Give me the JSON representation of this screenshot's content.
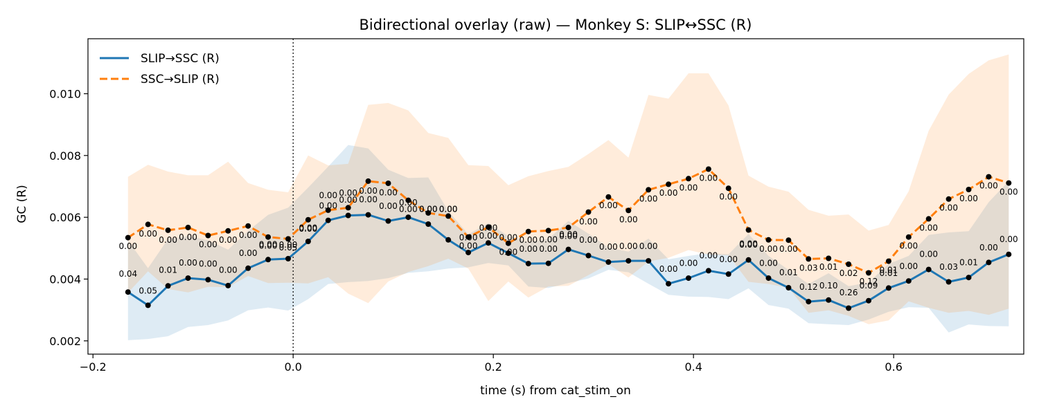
{
  "chart_data": {
    "type": "line",
    "title": "Bidirectional overlay (raw) — Monkey S: SLIP↔SSC (R)",
    "xlabel": "time (s) from cat_stim_on",
    "ylabel": "GC (R)",
    "xlim": [
      -0.205,
      0.73
    ],
    "ylim": [
      0.00157,
      0.01178
    ],
    "xticks": [
      -0.2,
      0.0,
      0.2,
      0.4,
      0.6
    ],
    "xtick_labels": [
      "−0.2",
      "0.0",
      "0.2",
      "0.4",
      "0.6"
    ],
    "yticks": [
      0.002,
      0.004,
      0.006,
      0.008,
      0.01
    ],
    "ytick_labels": [
      "0.002",
      "0.004",
      "0.006",
      "0.008",
      "0.010"
    ],
    "vline_x": 0.0,
    "grid": false,
    "legend_position": "upper left",
    "x": [
      -0.165,
      -0.145,
      -0.125,
      -0.105,
      -0.085,
      -0.065,
      -0.045,
      -0.025,
      -0.005,
      0.015,
      0.035,
      0.055,
      0.075,
      0.095,
      0.115,
      0.135,
      0.155,
      0.175,
      0.195,
      0.215,
      0.235,
      0.255,
      0.275,
      0.295,
      0.315,
      0.335,
      0.355,
      0.375,
      0.395,
      0.415,
      0.435,
      0.455,
      0.475,
      0.495,
      0.515,
      0.535,
      0.555,
      0.575,
      0.595,
      0.615,
      0.635,
      0.655,
      0.675,
      0.695,
      0.715
    ],
    "series": [
      {
        "name": "SLIP→SSC (R)",
        "color": "#1f77b4",
        "style": "solid",
        "values": [
          0.00358,
          0.00315,
          0.00378,
          0.00403,
          0.00398,
          0.00379,
          0.00435,
          0.00463,
          0.00466,
          0.00522,
          0.0059,
          0.00606,
          0.00608,
          0.00588,
          0.006,
          0.00578,
          0.00527,
          0.00486,
          0.00517,
          0.00484,
          0.0045,
          0.00451,
          0.00496,
          0.00476,
          0.00455,
          0.00459,
          0.00459,
          0.00385,
          0.00403,
          0.00427,
          0.00416,
          0.00462,
          0.00403,
          0.00372,
          0.00327,
          0.00332,
          0.00306,
          0.0033,
          0.00371,
          0.00394,
          0.00431,
          0.00391,
          0.00405,
          0.00454,
          0.0048
        ],
        "band_lower": [
          0.00202,
          0.00206,
          0.00215,
          0.00245,
          0.00251,
          0.00266,
          0.00299,
          0.00308,
          0.00298,
          0.00335,
          0.00384,
          0.0039,
          0.00394,
          0.00403,
          0.0042,
          0.00425,
          0.00434,
          0.00438,
          0.00452,
          0.00444,
          0.00376,
          0.00371,
          0.00387,
          0.00402,
          0.0043,
          0.00422,
          0.00385,
          0.00349,
          0.00343,
          0.00342,
          0.00335,
          0.0037,
          0.00316,
          0.00304,
          0.00257,
          0.00254,
          0.00251,
          0.00269,
          0.00294,
          0.00309,
          0.00307,
          0.00227,
          0.00253,
          0.00248,
          0.00247
        ],
        "band_upper": [
          0.00525,
          0.00435,
          0.0053,
          0.00539,
          0.00526,
          0.00495,
          0.00556,
          0.00608,
          0.00631,
          0.00696,
          0.00764,
          0.00834,
          0.00823,
          0.00754,
          0.00727,
          0.00729,
          0.0062,
          0.00545,
          0.00581,
          0.00539,
          0.0052,
          0.0053,
          0.00588,
          0.00547,
          0.00502,
          0.00489,
          0.00531,
          0.00464,
          0.00475,
          0.00484,
          0.0048,
          0.00546,
          0.00475,
          0.0043,
          0.00384,
          0.00419,
          0.00377,
          0.00389,
          0.00449,
          0.00475,
          0.00543,
          0.00551,
          0.00555,
          0.00649,
          0.00717
        ]
      },
      {
        "name": "SSC→SLIP (R)",
        "color": "#ff7f0e",
        "style": "dashed",
        "values": [
          0.00534,
          0.00577,
          0.00558,
          0.00567,
          0.00541,
          0.00556,
          0.00572,
          0.00536,
          0.0053,
          0.00592,
          0.00623,
          0.00631,
          0.00717,
          0.0071,
          0.00655,
          0.00614,
          0.00604,
          0.00536,
          0.00568,
          0.00516,
          0.00554,
          0.00557,
          0.00567,
          0.00617,
          0.00666,
          0.00622,
          0.00689,
          0.00707,
          0.00725,
          0.00756,
          0.00694,
          0.00559,
          0.00527,
          0.00526,
          0.00465,
          0.00467,
          0.00448,
          0.0042,
          0.00458,
          0.00536,
          0.00595,
          0.00659,
          0.0069,
          0.00731,
          0.00711
        ],
        "band_lower": [
          0.00356,
          0.00425,
          0.00368,
          0.00357,
          0.00375,
          0.00374,
          0.0041,
          0.00387,
          0.00388,
          0.00386,
          0.00406,
          0.00353,
          0.00322,
          0.00392,
          0.00423,
          0.00442,
          0.00466,
          0.00434,
          0.00329,
          0.00392,
          0.0034,
          0.00376,
          0.00378,
          0.00413,
          0.00448,
          0.00405,
          0.00457,
          0.00469,
          0.00494,
          0.00479,
          0.00477,
          0.00391,
          0.00384,
          0.00372,
          0.00291,
          0.00299,
          0.00281,
          0.00254,
          0.00266,
          0.00328,
          0.00307,
          0.00291,
          0.00297,
          0.00284,
          0.00304
        ],
        "band_upper": [
          0.00731,
          0.0077,
          0.00748,
          0.00736,
          0.00736,
          0.0078,
          0.00711,
          0.00689,
          0.00681,
          0.008,
          0.00768,
          0.00773,
          0.00964,
          0.0097,
          0.00946,
          0.00873,
          0.00857,
          0.00769,
          0.00766,
          0.00704,
          0.00733,
          0.0075,
          0.00763,
          0.00805,
          0.0085,
          0.00793,
          0.00996,
          0.00984,
          0.01066,
          0.01066,
          0.00962,
          0.00735,
          0.00699,
          0.00683,
          0.00624,
          0.00605,
          0.00609,
          0.00557,
          0.00575,
          0.00684,
          0.0088,
          0.00997,
          0.01064,
          0.01108,
          0.01127
        ]
      }
    ],
    "annotations": [
      {
        "x": -0.165,
        "y": 0.00408,
        "text": "0.04"
      },
      {
        "x": -0.145,
        "y": 0.00353,
        "text": "0.05"
      },
      {
        "x": -0.125,
        "y": 0.0042,
        "text": "0.01"
      },
      {
        "x": -0.105,
        "y": 0.00444,
        "text": "0.00"
      },
      {
        "x": -0.085,
        "y": 0.0044,
        "text": "0.00"
      },
      {
        "x": -0.065,
        "y": 0.0042,
        "text": "0.00"
      },
      {
        "x": -0.045,
        "y": 0.00475,
        "text": "0.00"
      },
      {
        "x": -0.025,
        "y": 0.00503,
        "text": "0.00"
      },
      {
        "x": -0.005,
        "y": 0.00502,
        "text": "0.00"
      },
      {
        "x": 0.015,
        "y": 0.00557,
        "text": "0.00"
      },
      {
        "x": 0.035,
        "y": 0.00628,
        "text": "0.00"
      },
      {
        "x": 0.055,
        "y": 0.00647,
        "text": "0.00"
      },
      {
        "x": 0.075,
        "y": 0.00648,
        "text": "0.00"
      },
      {
        "x": 0.095,
        "y": 0.00627,
        "text": "0.00"
      },
      {
        "x": 0.115,
        "y": 0.00638,
        "text": "0.00"
      },
      {
        "x": 0.135,
        "y": 0.00617,
        "text": "0.00"
      },
      {
        "x": 0.155,
        "y": 0.00617,
        "text": "0.00"
      },
      {
        "x": 0.175,
        "y": 0.00525,
        "text": "0.00"
      },
      {
        "x": 0.195,
        "y": 0.00557,
        "text": "0.00"
      },
      {
        "x": 0.215,
        "y": 0.00525,
        "text": "0.00"
      },
      {
        "x": 0.235,
        "y": 0.00488,
        "text": "0.00"
      },
      {
        "x": 0.255,
        "y": 0.00488,
        "text": "0.00"
      },
      {
        "x": 0.275,
        "y": 0.00535,
        "text": "0.00"
      },
      {
        "x": 0.295,
        "y": 0.00517,
        "text": "0.00"
      },
      {
        "x": 0.315,
        "y": 0.00495,
        "text": "0.00"
      },
      {
        "x": 0.335,
        "y": 0.00497,
        "text": "0.00"
      },
      {
        "x": 0.355,
        "y": 0.00497,
        "text": "0.00"
      },
      {
        "x": 0.375,
        "y": 0.00424,
        "text": "0.00"
      },
      {
        "x": 0.395,
        "y": 0.00442,
        "text": "0.00"
      },
      {
        "x": 0.415,
        "y": 0.00467,
        "text": "0.00"
      },
      {
        "x": 0.435,
        "y": 0.00455,
        "text": "0.00"
      },
      {
        "x": 0.455,
        "y": 0.00502,
        "text": "0.00"
      },
      {
        "x": 0.475,
        "y": 0.00442,
        "text": "0.00"
      },
      {
        "x": 0.495,
        "y": 0.00412,
        "text": "0.01"
      },
      {
        "x": 0.515,
        "y": 0.00365,
        "text": "0.12"
      },
      {
        "x": 0.535,
        "y": 0.0037,
        "text": "0.10"
      },
      {
        "x": 0.555,
        "y": 0.00347,
        "text": "0.26"
      },
      {
        "x": 0.575,
        "y": 0.0037,
        "text": "0.09"
      },
      {
        "x": 0.595,
        "y": 0.0041,
        "text": "0.01"
      },
      {
        "x": 0.615,
        "y": 0.00432,
        "text": "0.00"
      },
      {
        "x": 0.635,
        "y": 0.00472,
        "text": "0.00"
      },
      {
        "x": 0.655,
        "y": 0.0043,
        "text": "0.03"
      },
      {
        "x": 0.675,
        "y": 0.00445,
        "text": "0.01"
      },
      {
        "x": 0.695,
        "y": 0.00493,
        "text": "0.00"
      },
      {
        "x": 0.715,
        "y": 0.0052,
        "text": "0.00"
      },
      {
        "x": -0.165,
        "y": 0.00497,
        "text": "0.00"
      },
      {
        "x": -0.145,
        "y": 0.00538,
        "text": "0.00"
      },
      {
        "x": -0.125,
        "y": 0.00518,
        "text": "0.00"
      },
      {
        "x": -0.105,
        "y": 0.00527,
        "text": "0.00"
      },
      {
        "x": -0.085,
        "y": 0.00503,
        "text": "0.00"
      },
      {
        "x": -0.065,
        "y": 0.00518,
        "text": "0.00"
      },
      {
        "x": -0.045,
        "y": 0.00533,
        "text": "0.00"
      },
      {
        "x": -0.025,
        "y": 0.00498,
        "text": "0.00"
      },
      {
        "x": -0.005,
        "y": 0.00493,
        "text": "0.05"
      },
      {
        "x": 0.015,
        "y": 0.00553,
        "text": "0.00"
      },
      {
        "x": 0.035,
        "y": 0.00662,
        "text": "0.00"
      },
      {
        "x": 0.055,
        "y": 0.0067,
        "text": "0.00"
      },
      {
        "x": 0.075,
        "y": 0.00677,
        "text": "0.00"
      },
      {
        "x": 0.095,
        "y": 0.00671,
        "text": "0.00"
      },
      {
        "x": 0.115,
        "y": 0.00617,
        "text": "0.00"
      },
      {
        "x": 0.135,
        "y": 0.00617,
        "text": "0.00"
      },
      {
        "x": 0.155,
        "y": 0.00617,
        "text": "0.00"
      },
      {
        "x": 0.175,
        "y": 0.00498,
        "text": "0.00"
      },
      {
        "x": 0.195,
        "y": 0.00531,
        "text": "0.00"
      },
      {
        "x": 0.215,
        "y": 0.00478,
        "text": "0.00"
      },
      {
        "x": 0.235,
        "y": 0.00517,
        "text": "0.00"
      },
      {
        "x": 0.255,
        "y": 0.00519,
        "text": "0.00"
      },
      {
        "x": 0.275,
        "y": 0.0053,
        "text": "0.00"
      },
      {
        "x": 0.295,
        "y": 0.00577,
        "text": "0.00"
      },
      {
        "x": 0.315,
        "y": 0.00629,
        "text": "0.00"
      },
      {
        "x": 0.335,
        "y": 0.00583,
        "text": "0.00"
      },
      {
        "x": 0.355,
        "y": 0.00651,
        "text": "0.00"
      },
      {
        "x": 0.375,
        "y": 0.0067,
        "text": "0.00"
      },
      {
        "x": 0.395,
        "y": 0.00687,
        "text": "0.00"
      },
      {
        "x": 0.415,
        "y": 0.00718,
        "text": "0.00"
      },
      {
        "x": 0.435,
        "y": 0.00657,
        "text": "0.00"
      },
      {
        "x": 0.455,
        "y": 0.00505,
        "text": "0.00"
      },
      {
        "x": 0.475,
        "y": 0.00488,
        "text": "0.00"
      },
      {
        "x": 0.495,
        "y": 0.00488,
        "text": "0.00"
      },
      {
        "x": 0.515,
        "y": 0.00427,
        "text": "0.03"
      },
      {
        "x": 0.535,
        "y": 0.0043,
        "text": "0.01"
      },
      {
        "x": 0.555,
        "y": 0.0041,
        "text": "0.02"
      },
      {
        "x": 0.575,
        "y": 0.00383,
        "text": "0.12"
      },
      {
        "x": 0.595,
        "y": 0.0042,
        "text": "0.01"
      },
      {
        "x": 0.615,
        "y": 0.00498,
        "text": "0.00"
      },
      {
        "x": 0.635,
        "y": 0.00557,
        "text": "0.00"
      },
      {
        "x": 0.655,
        "y": 0.00622,
        "text": "0.00"
      },
      {
        "x": 0.675,
        "y": 0.00652,
        "text": "0.00"
      },
      {
        "x": 0.695,
        "y": 0.00693,
        "text": "0.00"
      },
      {
        "x": 0.715,
        "y": 0.00673,
        "text": "0.00"
      }
    ]
  }
}
